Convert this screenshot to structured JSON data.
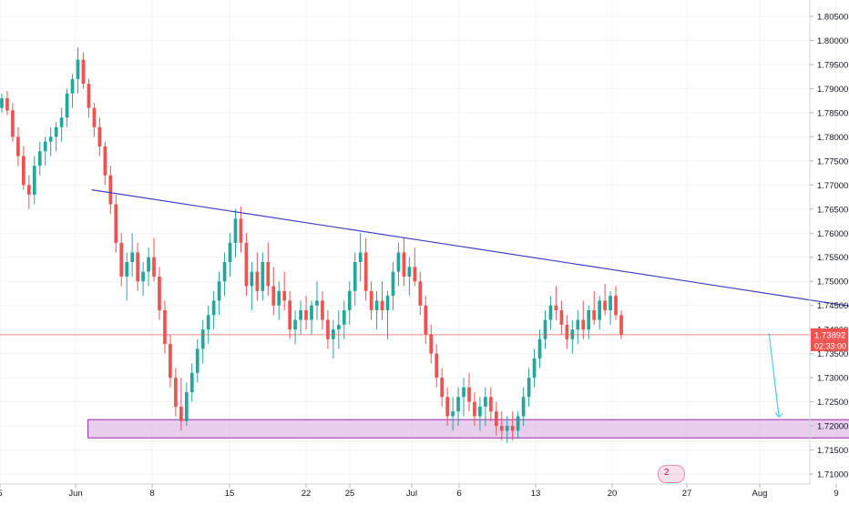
{
  "chart_data": {
    "type": "candlestick",
    "instrument_note": "",
    "y_axis": {
      "position": "right",
      "ticks": [
        "1.80500",
        "1.80000",
        "1.79500",
        "1.79000",
        "1.78500",
        "1.78000",
        "1.77500",
        "1.77000",
        "1.76500",
        "1.76000",
        "1.75500",
        "1.75000",
        "1.74500",
        "1.74000",
        "1.73500",
        "1.73000",
        "1.72500",
        "1.72000",
        "1.71500",
        "1.71000"
      ],
      "range": [
        1.7085,
        1.8095
      ]
    },
    "x_axis": {
      "ticks": [
        "5",
        "Jun",
        "8",
        "15",
        "22",
        "25",
        "Jul",
        "6",
        "13",
        "20",
        "27",
        "Aug",
        "9"
      ]
    },
    "last_price": {
      "label": "1.73892",
      "countdown": "02:33:00",
      "value": 1.73892,
      "color": "#ef5350"
    },
    "colors": {
      "up": "#26a69a",
      "down": "#ef5350",
      "trendline": "#3f3fbf",
      "zone_fill": "#e1bee7",
      "zone_border": "#9c27b0",
      "arrow": "#4dd0e1"
    },
    "annotations": {
      "trendline": {
        "from": {
          "bar": 1.2,
          "price": 1.769
        },
        "to": {
          "bar": 13.1,
          "price": 1.74
        }
      },
      "support_zone": {
        "from_bar": 1.15,
        "to_bar": 12.65,
        "top": 1.7213,
        "bottom": 1.7175
      },
      "arrow": {
        "from": {
          "bar": 10.05,
          "price": 1.7392
        },
        "to": {
          "bar": 10.18,
          "price": 1.7218
        }
      }
    },
    "badge_text": "2",
    "candles": [
      [
        1.786,
        1.789,
        1.785,
        1.788
      ],
      [
        1.788,
        1.7895,
        1.7845,
        1.7855
      ],
      [
        1.7855,
        1.787,
        1.779,
        1.78
      ],
      [
        1.78,
        1.782,
        1.774,
        1.776
      ],
      [
        1.776,
        1.778,
        1.769,
        1.77
      ],
      [
        1.77,
        1.772,
        1.765,
        1.768
      ],
      [
        1.768,
        1.776,
        1.766,
        1.774
      ],
      [
        1.774,
        1.779,
        1.772,
        1.777
      ],
      [
        1.777,
        1.78,
        1.774,
        1.779
      ],
      [
        1.779,
        1.782,
        1.776,
        1.78
      ],
      [
        1.78,
        1.783,
        1.777,
        1.782
      ],
      [
        1.782,
        1.786,
        1.779,
        1.784
      ],
      [
        1.784,
        1.79,
        1.782,
        1.789
      ],
      [
        1.789,
        1.793,
        1.786,
        1.792
      ],
      [
        1.792,
        1.7985,
        1.789,
        1.796
      ],
      [
        1.796,
        1.7975,
        1.79,
        1.791
      ],
      [
        1.791,
        1.792,
        1.784,
        1.786
      ],
      [
        1.786,
        1.787,
        1.78,
        1.782
      ],
      [
        1.782,
        1.784,
        1.776,
        1.778
      ],
      [
        1.778,
        1.779,
        1.77,
        1.772
      ],
      [
        1.772,
        1.774,
        1.764,
        1.766
      ],
      [
        1.766,
        1.768,
        1.756,
        1.758
      ],
      [
        1.758,
        1.76,
        1.749,
        1.751
      ],
      [
        1.751,
        1.756,
        1.746,
        1.754
      ],
      [
        1.754,
        1.76,
        1.751,
        1.756
      ],
      [
        1.756,
        1.758,
        1.748,
        1.75
      ],
      [
        1.75,
        1.754,
        1.747,
        1.752
      ],
      [
        1.752,
        1.757,
        1.749,
        1.755
      ],
      [
        1.755,
        1.759,
        1.75,
        1.751
      ],
      [
        1.751,
        1.753,
        1.742,
        1.744
      ],
      [
        1.744,
        1.746,
        1.735,
        1.737
      ],
      [
        1.737,
        1.739,
        1.728,
        1.73
      ],
      [
        1.73,
        1.732,
        1.722,
        1.724
      ],
      [
        1.724,
        1.73,
        1.719,
        1.721
      ],
      [
        1.721,
        1.729,
        1.72,
        1.727
      ],
      [
        1.727,
        1.733,
        1.725,
        1.731
      ],
      [
        1.731,
        1.738,
        1.729,
        1.736
      ],
      [
        1.736,
        1.742,
        1.733,
        1.74
      ],
      [
        1.74,
        1.745,
        1.737,
        1.743
      ],
      [
        1.743,
        1.748,
        1.74,
        1.746
      ],
      [
        1.746,
        1.752,
        1.743,
        1.75
      ],
      [
        1.75,
        1.756,
        1.747,
        1.754
      ],
      [
        1.754,
        1.76,
        1.751,
        1.758
      ],
      [
        1.758,
        1.765,
        1.755,
        1.763
      ],
      [
        1.763,
        1.7655,
        1.756,
        1.758
      ],
      [
        1.758,
        1.76,
        1.747,
        1.749
      ],
      [
        1.749,
        1.754,
        1.744,
        1.752
      ],
      [
        1.752,
        1.756,
        1.746,
        1.748
      ],
      [
        1.748,
        1.756,
        1.746,
        1.754
      ],
      [
        1.754,
        1.758,
        1.747,
        1.749
      ],
      [
        1.749,
        1.753,
        1.743,
        1.745
      ],
      [
        1.745,
        1.75,
        1.742,
        1.748
      ],
      [
        1.748,
        1.752,
        1.744,
        1.746
      ],
      [
        1.746,
        1.748,
        1.738,
        1.74
      ],
      [
        1.74,
        1.744,
        1.737,
        1.742
      ],
      [
        1.742,
        1.746,
        1.739,
        1.744
      ],
      [
        1.744,
        1.747,
        1.74,
        1.742
      ],
      [
        1.742,
        1.746,
        1.739,
        1.745
      ],
      [
        1.745,
        1.75,
        1.742,
        1.746
      ],
      [
        1.746,
        1.748,
        1.74,
        1.742
      ],
      [
        1.742,
        1.744,
        1.736,
        1.738
      ],
      [
        1.738,
        1.742,
        1.734,
        1.74
      ],
      [
        1.74,
        1.744,
        1.736,
        1.741
      ],
      [
        1.741,
        1.746,
        1.738,
        1.744
      ],
      [
        1.744,
        1.75,
        1.741,
        1.748
      ],
      [
        1.748,
        1.756,
        1.745,
        1.754
      ],
      [
        1.754,
        1.76,
        1.75,
        1.756
      ],
      [
        1.756,
        1.759,
        1.746,
        1.748
      ],
      [
        1.748,
        1.75,
        1.742,
        1.744
      ],
      [
        1.744,
        1.748,
        1.74,
        1.746
      ],
      [
        1.746,
        1.75,
        1.742,
        1.744
      ],
      [
        1.744,
        1.748,
        1.738,
        1.747
      ],
      [
        1.747,
        1.754,
        1.744,
        1.752
      ],
      [
        1.752,
        1.758,
        1.749,
        1.756
      ],
      [
        1.756,
        1.759,
        1.749,
        1.751
      ],
      [
        1.751,
        1.755,
        1.747,
        1.753
      ],
      [
        1.753,
        1.757,
        1.749,
        1.75
      ],
      [
        1.75,
        1.752,
        1.743,
        1.745
      ],
      [
        1.745,
        1.747,
        1.737,
        1.739
      ],
      [
        1.739,
        1.741,
        1.733,
        1.735
      ],
      [
        1.735,
        1.737,
        1.728,
        1.73
      ],
      [
        1.73,
        1.732,
        1.724,
        1.726
      ],
      [
        1.726,
        1.728,
        1.72,
        1.722
      ],
      [
        1.722,
        1.726,
        1.719,
        1.723
      ],
      [
        1.723,
        1.728,
        1.72,
        1.726
      ],
      [
        1.726,
        1.73,
        1.722,
        1.728
      ],
      [
        1.728,
        1.731,
        1.723,
        1.725
      ],
      [
        1.725,
        1.727,
        1.72,
        1.722
      ],
      [
        1.722,
        1.726,
        1.719,
        1.724
      ],
      [
        1.724,
        1.728,
        1.72,
        1.726
      ],
      [
        1.726,
        1.728,
        1.721,
        1.723
      ],
      [
        1.723,
        1.725,
        1.718,
        1.72
      ],
      [
        1.72,
        1.723,
        1.717,
        1.719
      ],
      [
        1.719,
        1.722,
        1.7165,
        1.72
      ],
      [
        1.72,
        1.723,
        1.717,
        1.719
      ],
      [
        1.719,
        1.723,
        1.7175,
        1.722
      ],
      [
        1.722,
        1.728,
        1.72,
        1.726
      ],
      [
        1.726,
        1.732,
        1.724,
        1.73
      ],
      [
        1.73,
        1.736,
        1.728,
        1.734
      ],
      [
        1.734,
        1.74,
        1.732,
        1.738
      ],
      [
        1.738,
        1.744,
        1.736,
        1.742
      ],
      [
        1.742,
        1.747,
        1.74,
        1.745
      ],
      [
        1.745,
        1.749,
        1.742,
        1.744
      ],
      [
        1.744,
        1.746,
        1.739,
        1.741
      ],
      [
        1.741,
        1.743,
        1.736,
        1.738
      ],
      [
        1.738,
        1.742,
        1.735,
        1.74
      ],
      [
        1.74,
        1.744,
        1.737,
        1.742
      ],
      [
        1.742,
        1.746,
        1.738,
        1.74
      ],
      [
        1.74,
        1.745,
        1.738,
        1.744
      ],
      [
        1.744,
        1.748,
        1.741,
        1.742
      ],
      [
        1.742,
        1.747,
        1.74,
        1.746
      ],
      [
        1.746,
        1.7495,
        1.743,
        1.744
      ],
      [
        1.744,
        1.748,
        1.741,
        1.747
      ],
      [
        1.747,
        1.749,
        1.742,
        1.743
      ],
      [
        1.743,
        1.744,
        1.738,
        1.7389
      ]
    ]
  }
}
